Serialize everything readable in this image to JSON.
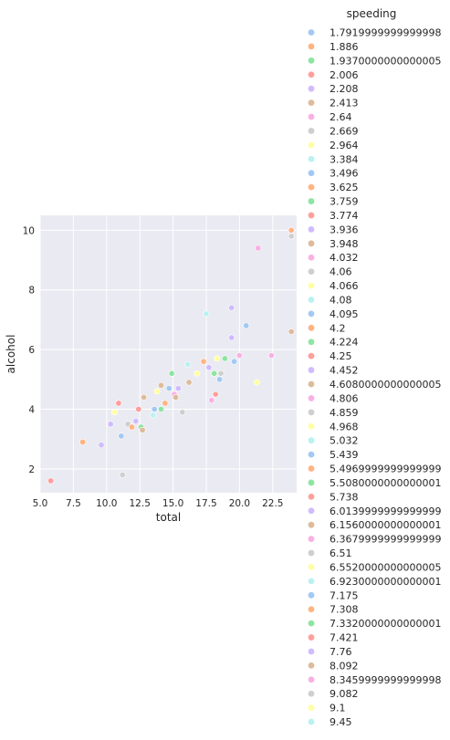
{
  "chart_data": {
    "type": "scatter",
    "xlabel": "total",
    "ylabel": "alcohol",
    "xlim": [
      5.0,
      24.3
    ],
    "ylim": [
      1.2,
      10.5
    ],
    "xticks": [
      "5.0",
      "7.5",
      "10.0",
      "12.5",
      "15.0",
      "17.5",
      "20.0",
      "22.5"
    ],
    "yticks": [
      "2",
      "4",
      "6",
      "8",
      "10"
    ],
    "grid": true,
    "legend_title": "speeding",
    "legend_placement": "right",
    "palette": [
      "#a1c9f4",
      "#ffb482",
      "#8de5a1",
      "#ff9f9b",
      "#d0bbff",
      "#debb9b",
      "#fab0e4",
      "#cfcfcf",
      "#fffea3",
      "#b9f2f0"
    ],
    "background": "#eaeaf2",
    "legend_entries": [
      "1.7919999999999998",
      "1.886",
      "1.9370000000000005",
      "2.006",
      "2.208",
      "2.413",
      "2.64",
      "2.669",
      "2.964",
      "3.384",
      "3.496",
      "3.625",
      "3.759",
      "3.774",
      "3.936",
      "3.948",
      "4.032",
      "4.06",
      "4.066",
      "4.08",
      "4.095",
      "4.2",
      "4.224",
      "4.25",
      "4.452",
      "4.6080000000000005",
      "4.806",
      "4.859",
      "4.968",
      "5.032",
      "5.439",
      "5.4969999999999999",
      "5.5080000000000001",
      "5.738",
      "6.0139999999999999",
      "6.1560000000000001",
      "6.3679999999999999",
      "6.51",
      "6.5520000000000005",
      "6.9230000000000001",
      "7.175",
      "7.308",
      "7.3320000000000001",
      "7.421",
      "7.76",
      "8.092",
      "8.3459999999999998",
      "9.082",
      "9.1",
      "9.45"
    ],
    "points": [
      {
        "x": 5.8,
        "y": 1.6,
        "c": 3
      },
      {
        "x": 8.2,
        "y": 2.9,
        "c": 1
      },
      {
        "x": 9.6,
        "y": 2.8,
        "c": 4
      },
      {
        "x": 10.3,
        "y": 3.5,
        "c": 4
      },
      {
        "x": 10.6,
        "y": 3.9,
        "c": 8
      },
      {
        "x": 10.9,
        "y": 4.2,
        "c": 3
      },
      {
        "x": 11.1,
        "y": 3.1,
        "c": 0
      },
      {
        "x": 11.2,
        "y": 1.8,
        "c": 7
      },
      {
        "x": 11.6,
        "y": 3.5,
        "c": 7
      },
      {
        "x": 11.9,
        "y": 3.4,
        "c": 1
      },
      {
        "x": 12.2,
        "y": 3.6,
        "c": 4
      },
      {
        "x": 12.4,
        "y": 4.0,
        "c": 3
      },
      {
        "x": 12.6,
        "y": 3.4,
        "c": 2
      },
      {
        "x": 12.7,
        "y": 3.3,
        "c": 5
      },
      {
        "x": 12.8,
        "y": 4.4,
        "c": 5
      },
      {
        "x": 13.5,
        "y": 3.8,
        "c": 9
      },
      {
        "x": 13.6,
        "y": 4.0,
        "c": 0
      },
      {
        "x": 13.8,
        "y": 4.6,
        "c": 8
      },
      {
        "x": 14.1,
        "y": 4.8,
        "c": 5
      },
      {
        "x": 14.1,
        "y": 4.0,
        "c": 2
      },
      {
        "x": 14.4,
        "y": 4.2,
        "c": 1
      },
      {
        "x": 14.7,
        "y": 4.7,
        "c": 0
      },
      {
        "x": 14.9,
        "y": 5.2,
        "c": 2
      },
      {
        "x": 15.1,
        "y": 4.5,
        "c": 6
      },
      {
        "x": 15.2,
        "y": 4.4,
        "c": 5
      },
      {
        "x": 15.4,
        "y": 4.7,
        "c": 4
      },
      {
        "x": 15.7,
        "y": 3.9,
        "c": 7
      },
      {
        "x": 16.1,
        "y": 5.5,
        "c": 9
      },
      {
        "x": 16.2,
        "y": 4.9,
        "c": 5
      },
      {
        "x": 16.8,
        "y": 5.2,
        "c": 8
      },
      {
        "x": 17.3,
        "y": 5.6,
        "c": 1
      },
      {
        "x": 17.5,
        "y": 7.2,
        "c": 9
      },
      {
        "x": 17.7,
        "y": 5.4,
        "c": 4
      },
      {
        "x": 17.9,
        "y": 4.3,
        "c": 6
      },
      {
        "x": 18.1,
        "y": 5.2,
        "c": 2
      },
      {
        "x": 18.2,
        "y": 4.5,
        "c": 3
      },
      {
        "x": 18.5,
        "y": 5.0,
        "c": 0
      },
      {
        "x": 18.3,
        "y": 5.7,
        "c": 8
      },
      {
        "x": 18.6,
        "y": 5.2,
        "c": 7
      },
      {
        "x": 18.9,
        "y": 5.7,
        "c": 2
      },
      {
        "x": 19.4,
        "y": 7.4,
        "c": 4
      },
      {
        "x": 19.4,
        "y": 6.4,
        "c": 4
      },
      {
        "x": 19.6,
        "y": 5.6,
        "c": 0
      },
      {
        "x": 20.0,
        "y": 5.8,
        "c": 6
      },
      {
        "x": 20.5,
        "y": 6.8,
        "c": 0
      },
      {
        "x": 21.3,
        "y": 4.9,
        "c": 8
      },
      {
        "x": 21.4,
        "y": 9.4,
        "c": 6
      },
      {
        "x": 22.4,
        "y": 5.8,
        "c": 6
      },
      {
        "x": 23.9,
        "y": 10.0,
        "c": 1
      },
      {
        "x": 23.9,
        "y": 9.8,
        "c": 7
      },
      {
        "x": 23.9,
        "y": 6.6,
        "c": 5
      }
    ]
  }
}
